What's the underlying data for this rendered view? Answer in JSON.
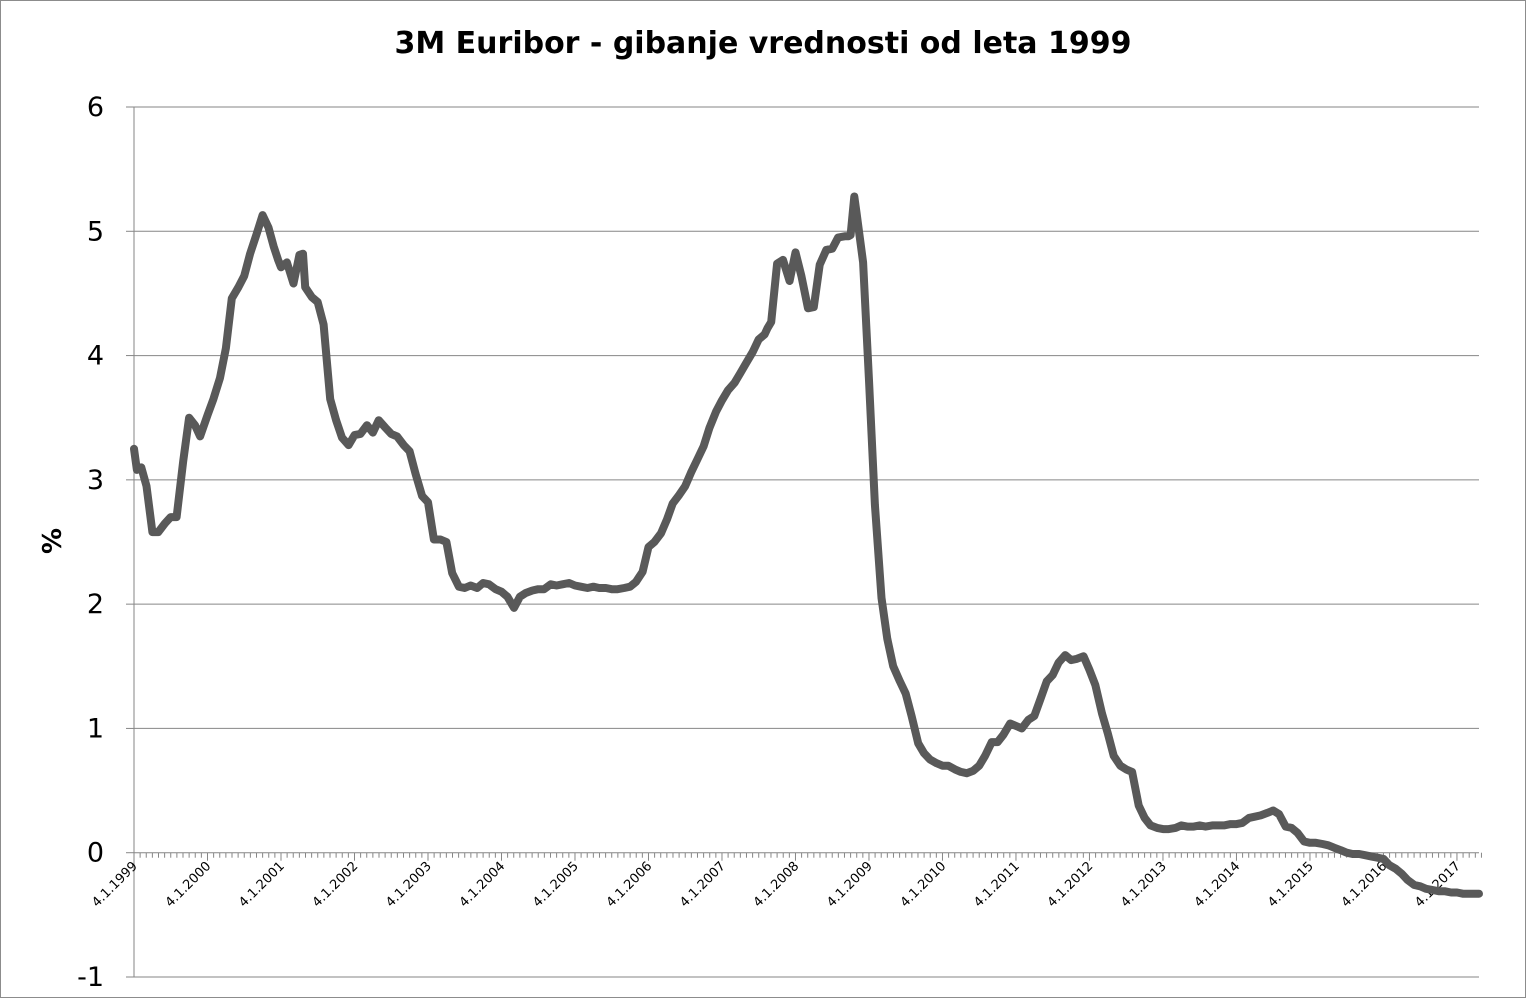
{
  "chart_data": {
    "type": "line",
    "title": "3M Euribor - gibanje vrednosti od leta 1999",
    "ylabel": "%",
    "xlabel": "",
    "ylim": [
      -1,
      6
    ],
    "yticks": [
      "-1",
      "0",
      "1",
      "2",
      "3",
      "4",
      "5",
      "6"
    ],
    "x_tick_labels": [
      "4.1.1999",
      "4.1.2000",
      "4.1.2001",
      "4.1.2002",
      "4.1.2003",
      "4.1.2004",
      "4.1.2005",
      "4.1.2006",
      "4.1.2007",
      "4.1.2008",
      "4.1.2009",
      "4.1.2010",
      "4.1.2011",
      "4.1.2012",
      "4.1.2013",
      "4.1.2014",
      "4.1.2015",
      "4.1.2016",
      "4.1.2017"
    ],
    "xlim": [
      1999.0,
      2017.3
    ],
    "grid": true,
    "legend": "none",
    "line_color": "#595959",
    "gridline_color": "#868686",
    "series": [
      {
        "x": [
          1999.0,
          1999.04,
          1999.1,
          1999.17,
          1999.25,
          1999.33,
          1999.42,
          1999.5,
          1999.58,
          1999.67,
          1999.75,
          1999.83,
          1999.9,
          2000.0,
          2000.08,
          2000.17,
          2000.25,
          2000.33,
          2000.42,
          2000.5,
          2000.58,
          2000.67,
          2000.75,
          2000.83,
          2000.9,
          2000.96,
          2001.0,
          2001.08,
          2001.17,
          2001.25,
          2001.3,
          2001.33,
          2001.42,
          2001.5,
          2001.58,
          2001.67,
          2001.75,
          2001.83,
          2001.92,
          2002.0,
          2002.08,
          2002.17,
          2002.25,
          2002.33,
          2002.42,
          2002.5,
          2002.58,
          2002.67,
          2002.75,
          2002.83,
          2002.92,
          2003.0,
          2003.08,
          2003.17,
          2003.25,
          2003.33,
          2003.42,
          2003.5,
          2003.58,
          2003.67,
          2003.75,
          2003.83,
          2003.92,
          2004.0,
          2004.08,
          2004.17,
          2004.25,
          2004.33,
          2004.42,
          2004.5,
          2004.58,
          2004.67,
          2004.75,
          2004.83,
          2004.92,
          2005.0,
          2005.08,
          2005.17,
          2005.25,
          2005.33,
          2005.42,
          2005.5,
          2005.58,
          2005.67,
          2005.75,
          2005.83,
          2005.92,
          2006.0,
          2006.08,
          2006.17,
          2006.25,
          2006.33,
          2006.42,
          2006.5,
          2006.58,
          2006.67,
          2006.75,
          2006.83,
          2006.92,
          2007.0,
          2007.08,
          2007.17,
          2007.25,
          2007.33,
          2007.42,
          2007.5,
          2007.58,
          2007.62,
          2007.67,
          2007.75,
          2007.83,
          2007.92,
          2008.0,
          2008.08,
          2008.17,
          2008.25,
          2008.33,
          2008.42,
          2008.5,
          2008.58,
          2008.67,
          2008.72,
          2008.75,
          2008.8,
          2008.83,
          2008.92,
          2009.0,
          2009.08,
          2009.17,
          2009.25,
          2009.33,
          2009.42,
          2009.5,
          2009.58,
          2009.67,
          2009.75,
          2009.83,
          2009.92,
          2010.0,
          2010.08,
          2010.17,
          2010.25,
          2010.33,
          2010.42,
          2010.5,
          2010.58,
          2010.67,
          2010.75,
          2010.83,
          2010.92,
          2011.0,
          2011.08,
          2011.17,
          2011.25,
          2011.33,
          2011.42,
          2011.5,
          2011.58,
          2011.67,
          2011.75,
          2011.83,
          2011.92,
          2012.0,
          2012.08,
          2012.17,
          2012.25,
          2012.33,
          2012.42,
          2012.5,
          2012.58,
          2012.67,
          2012.75,
          2012.83,
          2012.92,
          2013.0,
          2013.08,
          2013.17,
          2013.25,
          2013.33,
          2013.42,
          2013.5,
          2013.58,
          2013.67,
          2013.75,
          2013.83,
          2013.92,
          2014.0,
          2014.08,
          2014.17,
          2014.25,
          2014.33,
          2014.42,
          2014.5,
          2014.58,
          2014.67,
          2014.75,
          2014.83,
          2014.92,
          2015.0,
          2015.08,
          2015.17,
          2015.25,
          2015.33,
          2015.42,
          2015.5,
          2015.58,
          2015.67,
          2015.75,
          2015.83,
          2015.92,
          2016.0,
          2016.08,
          2016.17,
          2016.25,
          2016.33,
          2016.42,
          2016.5,
          2016.58,
          2016.67,
          2016.75,
          2016.83,
          2016.92,
          2017.0,
          2017.08,
          2017.17,
          2017.25,
          2017.3
        ],
        "values": [
          3.25,
          3.08,
          3.1,
          2.95,
          2.58,
          2.58,
          2.65,
          2.7,
          2.7,
          3.15,
          3.5,
          3.44,
          3.35,
          3.52,
          3.65,
          3.82,
          4.06,
          4.46,
          4.55,
          4.64,
          4.82,
          4.98,
          5.13,
          5.03,
          4.88,
          4.77,
          4.71,
          4.75,
          4.58,
          4.81,
          4.82,
          4.55,
          4.47,
          4.43,
          4.25,
          3.65,
          3.48,
          3.34,
          3.28,
          3.36,
          3.37,
          3.44,
          3.38,
          3.48,
          3.42,
          3.37,
          3.35,
          3.28,
          3.23,
          3.05,
          2.87,
          2.82,
          2.52,
          2.52,
          2.5,
          2.25,
          2.14,
          2.13,
          2.15,
          2.13,
          2.17,
          2.16,
          2.12,
          2.1,
          2.06,
          1.97,
          2.06,
          2.09,
          2.11,
          2.12,
          2.12,
          2.16,
          2.15,
          2.16,
          2.17,
          2.15,
          2.14,
          2.13,
          2.14,
          2.13,
          2.13,
          2.12,
          2.12,
          2.13,
          2.14,
          2.18,
          2.26,
          2.46,
          2.5,
          2.57,
          2.68,
          2.81,
          2.88,
          2.95,
          3.06,
          3.17,
          3.27,
          3.42,
          3.55,
          3.64,
          3.72,
          3.78,
          3.86,
          3.94,
          4.03,
          4.13,
          4.17,
          4.22,
          4.27,
          4.74,
          4.77,
          4.6,
          4.83,
          4.64,
          4.38,
          4.39,
          4.73,
          4.85,
          4.86,
          4.95,
          4.96,
          4.96,
          4.97,
          5.28,
          5.15,
          4.75,
          3.8,
          2.8,
          2.05,
          1.72,
          1.5,
          1.38,
          1.28,
          1.1,
          0.88,
          0.8,
          0.75,
          0.72,
          0.7,
          0.7,
          0.67,
          0.65,
          0.64,
          0.66,
          0.7,
          0.78,
          0.89,
          0.89,
          0.95,
          1.04,
          1.02,
          1.0,
          1.07,
          1.1,
          1.23,
          1.38,
          1.43,
          1.53,
          1.59,
          1.55,
          1.56,
          1.58,
          1.47,
          1.35,
          1.12,
          0.96,
          0.78,
          0.7,
          0.67,
          0.65,
          0.38,
          0.28,
          0.22,
          0.2,
          0.19,
          0.19,
          0.2,
          0.22,
          0.21,
          0.21,
          0.22,
          0.21,
          0.22,
          0.22,
          0.22,
          0.23,
          0.23,
          0.24,
          0.28,
          0.29,
          0.3,
          0.32,
          0.34,
          0.31,
          0.21,
          0.2,
          0.16,
          0.09,
          0.08,
          0.08,
          0.07,
          0.06,
          0.04,
          0.02,
          0.0,
          -0.01,
          -0.01,
          -0.02,
          -0.03,
          -0.04,
          -0.05,
          -0.1,
          -0.13,
          -0.17,
          -0.22,
          -0.26,
          -0.27,
          -0.29,
          -0.3,
          -0.31,
          -0.31,
          -0.32,
          -0.32,
          -0.33,
          -0.33,
          -0.33,
          -0.33
        ]
      }
    ]
  }
}
